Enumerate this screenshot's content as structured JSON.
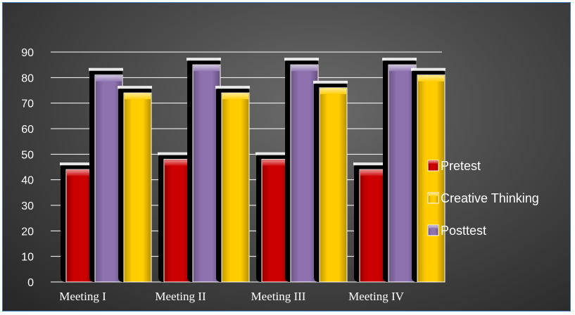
{
  "chart_data": {
    "type": "bar",
    "categories": [
      "Meeting I",
      "Meeting II",
      "Meeting III",
      "Meeting IV"
    ],
    "series": [
      {
        "name": "Pretest",
        "values": [
          44,
          48,
          48,
          44
        ],
        "color": "#cc0000"
      },
      {
        "name": "Posttest",
        "values": [
          81,
          85,
          85,
          85
        ],
        "color": "#8e72b0"
      },
      {
        "name": "Creative Thinking",
        "values": [
          74,
          74,
          76,
          81
        ],
        "color": "#ffcc00"
      }
    ],
    "legend_order": [
      "Pretest",
      "Creative Thinking",
      "Posttest"
    ],
    "bar_order_in_group": [
      "Pretest",
      "Posttest",
      "Creative Thinking"
    ],
    "ylim": [
      0,
      90
    ],
    "yticks": [
      0,
      10,
      20,
      30,
      40,
      50,
      60,
      70,
      80,
      90
    ],
    "grid": true,
    "legend_position": "right",
    "background": "#4a4a4a",
    "title": "",
    "xlabel": "",
    "ylabel": ""
  }
}
